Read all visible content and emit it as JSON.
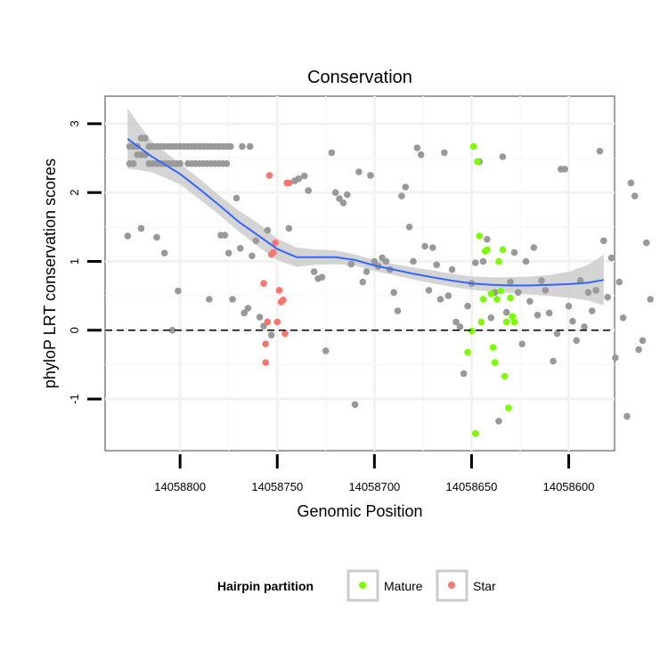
{
  "chart_data": {
    "type": "scatter",
    "title": "Conservation",
    "xlabel": "Genomic Position",
    "ylabel": "phyloP LRT conservation scores",
    "x_reversed": true,
    "xlim": [
      14058834,
      14058581
    ],
    "ylim": [
      -1.75,
      3.4
    ],
    "x_ticks": [
      14058800,
      14058750,
      14058700,
      14058650,
      14058600
    ],
    "y_ticks": [
      -1,
      0,
      1,
      2,
      3
    ],
    "grid": true,
    "reference_line": {
      "y": 0,
      "style": "dashed",
      "color": "#000000"
    },
    "legend": {
      "title": "Hairpin partition",
      "position": "bottom",
      "entries": [
        {
          "name": "Mature",
          "color": "#7CFC00"
        },
        {
          "name": "Star",
          "color": "#F8766D"
        }
      ]
    },
    "colors": {
      "other": "#999999",
      "Mature": "#7CFC00",
      "Star": "#F8766D",
      "smooth": "#3366FF",
      "band": "#CCCCCC"
    },
    "series": [
      {
        "name": "",
        "color": "#999999",
        "points": [
          [
            14058826,
            2.67
          ],
          [
            14058824,
            2.67
          ],
          [
            14058822,
            2.67
          ],
          [
            14058820,
            2.79
          ],
          [
            14058818,
            2.79
          ],
          [
            14058816,
            2.67
          ],
          [
            14058814,
            2.67
          ],
          [
            14058812,
            2.67
          ],
          [
            14058810,
            2.67
          ],
          [
            14058808,
            2.67
          ],
          [
            14058806,
            2.67
          ],
          [
            14058804,
            2.67
          ],
          [
            14058802,
            2.67
          ],
          [
            14058800,
            2.67
          ],
          [
            14058798,
            2.67
          ],
          [
            14058796,
            2.67
          ],
          [
            14058794,
            2.67
          ],
          [
            14058792,
            2.67
          ],
          [
            14058790,
            2.67
          ],
          [
            14058788,
            2.67
          ],
          [
            14058786,
            2.67
          ],
          [
            14058784,
            2.67
          ],
          [
            14058782,
            2.67
          ],
          [
            14058780,
            2.67
          ],
          [
            14058778,
            2.67
          ],
          [
            14058776,
            2.67
          ],
          [
            14058774,
            2.67
          ],
          [
            14058826,
            2.42
          ],
          [
            14058824,
            2.42
          ],
          [
            14058822,
            2.55
          ],
          [
            14058820,
            2.55
          ],
          [
            14058818,
            2.55
          ],
          [
            14058816,
            2.42
          ],
          [
            14058814,
            2.42
          ],
          [
            14058812,
            2.42
          ],
          [
            14058810,
            2.42
          ],
          [
            14058808,
            2.42
          ],
          [
            14058806,
            2.42
          ],
          [
            14058804,
            2.42
          ],
          [
            14058802,
            2.42
          ],
          [
            14058800,
            2.42
          ],
          [
            14058796,
            2.42
          ],
          [
            14058794,
            2.42
          ],
          [
            14058792,
            2.42
          ],
          [
            14058790,
            2.42
          ],
          [
            14058788,
            2.42
          ],
          [
            14058786,
            2.42
          ],
          [
            14058784,
            2.42
          ],
          [
            14058782,
            2.42
          ],
          [
            14058780,
            2.42
          ],
          [
            14058778,
            2.42
          ],
          [
            14058776,
            2.42
          ],
          [
            14058768,
            2.67
          ],
          [
            14058764,
            2.67
          ],
          [
            14058827,
            1.37
          ],
          [
            14058820,
            1.48
          ],
          [
            14058812,
            1.35
          ],
          [
            14058808,
            1.12
          ],
          [
            14058804,
            0.0
          ],
          [
            14058801,
            0.57
          ],
          [
            14058785,
            0.45
          ],
          [
            14058779,
            1.38
          ],
          [
            14058777,
            1.38
          ],
          [
            14058775,
            1.12
          ],
          [
            14058773,
            0.45
          ],
          [
            14058771,
            1.92
          ],
          [
            14058769,
            1.19
          ],
          [
            14058767,
            0.25
          ],
          [
            14058765,
            0.32
          ],
          [
            14058763,
            1.08
          ],
          [
            14058761,
            1.3
          ],
          [
            14058759,
            0.19
          ],
          [
            14058757,
            0.06
          ],
          [
            14058755,
            1.45
          ],
          [
            14058753,
            -0.07
          ],
          [
            14058744,
            1.48
          ],
          [
            14058741,
            2.17
          ],
          [
            14058739,
            2.2
          ],
          [
            14058736,
            2.24
          ],
          [
            14058734,
            2.03
          ],
          [
            14058731,
            0.85
          ],
          [
            14058729,
            0.75
          ],
          [
            14058727,
            0.77
          ],
          [
            14058725,
            -0.3
          ],
          [
            14058722,
            2.58
          ],
          [
            14058720,
            2.0
          ],
          [
            14058718,
            1.91
          ],
          [
            14058716,
            1.85
          ],
          [
            14058714,
            1.97
          ],
          [
            14058712,
            0.96
          ],
          [
            14058710,
            -1.08
          ],
          [
            14058708,
            2.3
          ],
          [
            14058706,
            0.7
          ],
          [
            14058704,
            0.85
          ],
          [
            14058702,
            2.25
          ],
          [
            14058700,
            1.0
          ],
          [
            14058698,
            0.93
          ],
          [
            14058696,
            1.05
          ],
          [
            14058694,
            1.0
          ],
          [
            14058692,
            0.88
          ],
          [
            14058690,
            0.55
          ],
          [
            14058688,
            0.28
          ],
          [
            14058686,
            1.95
          ],
          [
            14058684,
            2.08
          ],
          [
            14058682,
            1.5
          ],
          [
            14058680,
            1.0
          ],
          [
            14058678,
            2.65
          ],
          [
            14058676,
            2.55
          ],
          [
            14058674,
            1.22
          ],
          [
            14058672,
            0.58
          ],
          [
            14058670,
            1.2
          ],
          [
            14058668,
            0.95
          ],
          [
            14058666,
            0.45
          ],
          [
            14058664,
            2.58
          ],
          [
            14058662,
            0.5
          ],
          [
            14058660,
            0.88
          ],
          [
            14058658,
            0.12
          ],
          [
            14058656,
            0.05
          ],
          [
            14058654,
            -0.63
          ],
          [
            14058652,
            0.35
          ],
          [
            14058650,
            0.68
          ],
          [
            14058648,
            0.98
          ],
          [
            14058646,
            2.45
          ],
          [
            14058644,
            1.0
          ],
          [
            14058642,
            1.32
          ],
          [
            14058640,
            0.18
          ],
          [
            14058638,
            0.55
          ],
          [
            14058636,
            -1.32
          ],
          [
            14058634,
            2.52
          ],
          [
            14058632,
            0.26
          ],
          [
            14058630,
            0.7
          ],
          [
            14058628,
            1.13
          ],
          [
            14058626,
            0.55
          ],
          [
            14058624,
            -0.2
          ],
          [
            14058622,
            1.0
          ],
          [
            14058620,
            0.42
          ],
          [
            14058618,
            1.2
          ],
          [
            14058616,
            0.22
          ],
          [
            14058614,
            0.72
          ],
          [
            14058612,
            0.58
          ],
          [
            14058610,
            0.25
          ],
          [
            14058608,
            -0.45
          ],
          [
            14058606,
            -0.05
          ],
          [
            14058604,
            2.34
          ],
          [
            14058602,
            2.34
          ],
          [
            14058600,
            0.35
          ],
          [
            14058598,
            0.13
          ],
          [
            14058596,
            -0.15
          ],
          [
            14058594,
            0.72
          ],
          [
            14058592,
            0.05
          ],
          [
            14058590,
            0.55
          ],
          [
            14058588,
            0.28
          ],
          [
            14058586,
            0.58
          ],
          [
            14058584,
            2.6
          ],
          [
            14058582,
            1.3
          ],
          [
            14058580,
            0.48
          ],
          [
            14058578,
            1.05
          ],
          [
            14058576,
            -0.4
          ],
          [
            14058574,
            0.7
          ],
          [
            14058572,
            0.18
          ],
          [
            14058570,
            -1.25
          ],
          [
            14058568,
            2.14
          ],
          [
            14058566,
            1.95
          ],
          [
            14058564,
            -0.28
          ],
          [
            14058562,
            -0.15
          ],
          [
            14058560,
            1.27
          ],
          [
            14058558,
            0.45
          ]
        ]
      },
      {
        "name": "Mature",
        "color": "#7CFC00",
        "points": [
          [
            14058649,
            2.67
          ],
          [
            14058647,
            2.45
          ],
          [
            14058646,
            1.37
          ],
          [
            14058645,
            0.12
          ],
          [
            14058644,
            0.45
          ],
          [
            14058643,
            1.15
          ],
          [
            14058642,
            1.17
          ],
          [
            14058640,
            0.53
          ],
          [
            14058639,
            -0.25
          ],
          [
            14058638,
            -0.47
          ],
          [
            14058637,
            0.45
          ],
          [
            14058636,
            1.0
          ],
          [
            14058635,
            0.57
          ],
          [
            14058634,
            1.17
          ],
          [
            14058633,
            -0.67
          ],
          [
            14058632,
            0.12
          ],
          [
            14058631,
            -1.13
          ],
          [
            14058630,
            0.47
          ],
          [
            14058629,
            0.2
          ],
          [
            14058628,
            0.12
          ],
          [
            14058650,
            -0.01
          ],
          [
            14058652,
            -0.32
          ],
          [
            14058648,
            -1.5
          ]
        ]
      },
      {
        "name": "Star",
        "color": "#F8766D",
        "points": [
          [
            14058757,
            0.68
          ],
          [
            14058755,
            0.12
          ],
          [
            14058754,
            2.25
          ],
          [
            14058753,
            1.1
          ],
          [
            14058752,
            1.13
          ],
          [
            14058751,
            1.27
          ],
          [
            14058750,
            0.12
          ],
          [
            14058749,
            0.58
          ],
          [
            14058748,
            0.41
          ],
          [
            14058747,
            0.44
          ],
          [
            14058746,
            -0.05
          ],
          [
            14058745,
            2.14
          ],
          [
            14058744,
            2.14
          ],
          [
            14058756,
            -0.2
          ],
          [
            14058756,
            -0.47
          ]
        ]
      }
    ],
    "smooth": {
      "color": "#3366FF",
      "points": [
        [
          14058827,
          2.78
        ],
        [
          14058815,
          2.53
        ],
        [
          14058800,
          2.27
        ],
        [
          14058790,
          2.05
        ],
        [
          14058780,
          1.82
        ],
        [
          14058770,
          1.58
        ],
        [
          14058760,
          1.38
        ],
        [
          14058750,
          1.18
        ],
        [
          14058740,
          1.06
        ],
        [
          14058730,
          1.06
        ],
        [
          14058720,
          1.06
        ],
        [
          14058710,
          1.02
        ],
        [
          14058700,
          0.94
        ],
        [
          14058690,
          0.88
        ],
        [
          14058680,
          0.82
        ],
        [
          14058670,
          0.77
        ],
        [
          14058660,
          0.72
        ],
        [
          14058650,
          0.68
        ],
        [
          14058640,
          0.66
        ],
        [
          14058630,
          0.65
        ],
        [
          14058620,
          0.65
        ],
        [
          14058610,
          0.66
        ],
        [
          14058600,
          0.67
        ],
        [
          14058590,
          0.69
        ],
        [
          14058582,
          0.73
        ]
      ],
      "band_upper": [
        3.22,
        2.75,
        2.42,
        2.2,
        1.96,
        1.74,
        1.56,
        1.33,
        1.2,
        1.17,
        1.16,
        1.1,
        1.02,
        0.96,
        0.91,
        0.87,
        0.82,
        0.78,
        0.77,
        0.77,
        0.78,
        0.8,
        0.85,
        0.95,
        1.1
      ],
      "band_lower": [
        2.35,
        2.3,
        2.12,
        1.9,
        1.68,
        1.44,
        1.22,
        1.02,
        0.92,
        0.95,
        0.96,
        0.94,
        0.86,
        0.8,
        0.74,
        0.68,
        0.63,
        0.59,
        0.56,
        0.54,
        0.52,
        0.5,
        0.47,
        0.43,
        0.36
      ]
    }
  }
}
